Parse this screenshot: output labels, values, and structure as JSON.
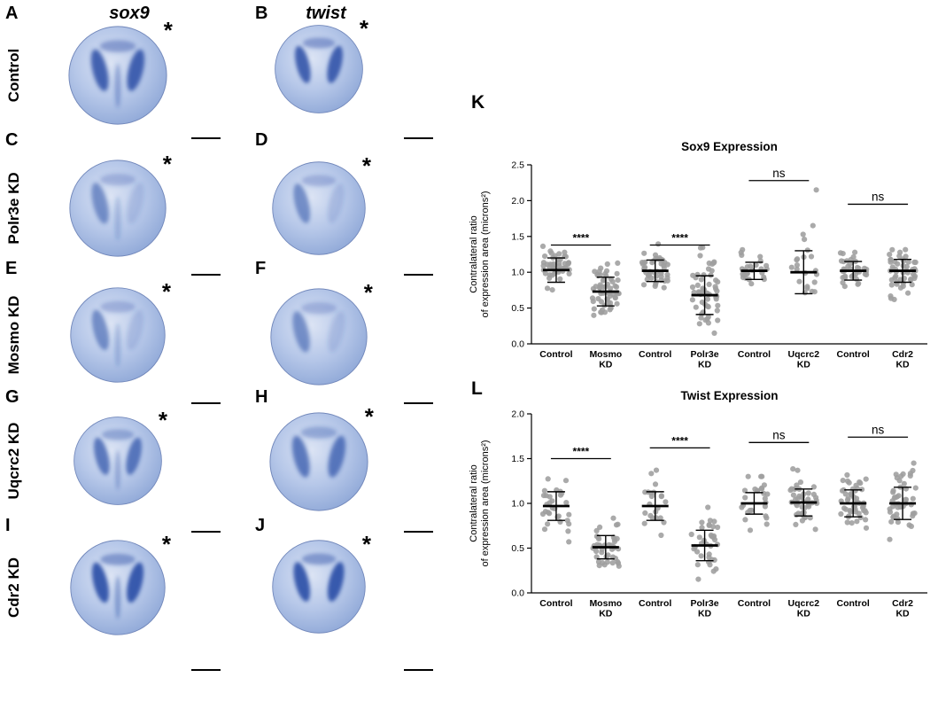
{
  "figure": {
    "gene_headers": [
      {
        "label": "sox9"
      },
      {
        "label": "twist"
      }
    ],
    "asterisk": "*",
    "rows": [
      {
        "label": "Control",
        "panel_left": "A",
        "panel_right": "B"
      },
      {
        "label": "Polr3e KD",
        "panel_left": "C",
        "panel_right": "D"
      },
      {
        "label": "Mosmo KD",
        "panel_left": "E",
        "panel_right": "F"
      },
      {
        "label": "Uqcrc2 KD",
        "panel_left": "G",
        "panel_right": "H"
      },
      {
        "label": "Cdr2 KD",
        "panel_left": "I",
        "panel_right": "J"
      }
    ]
  },
  "chart_data": [
    {
      "panel_letter": "K",
      "type": "scatter",
      "title": "Sox9 Expression",
      "ylabel_lines": [
        "Contralateral ratio",
        "of expression area (microns²)"
      ],
      "ylim": [
        0.0,
        2.5
      ],
      "yticks": [
        0.0,
        0.5,
        1.0,
        1.5,
        2.0,
        2.5
      ],
      "point_color": "#9e9e9e",
      "grid": false,
      "groups": [
        {
          "label_lines": [
            "Control"
          ],
          "mean": 1.03,
          "sd": 0.17,
          "n": 48
        },
        {
          "label_lines": [
            "Mosmo",
            "KD"
          ],
          "mean": 0.73,
          "sd": 0.2,
          "n": 58
        },
        {
          "label_lines": [
            "Control"
          ],
          "mean": 1.02,
          "sd": 0.15,
          "n": 45
        },
        {
          "label_lines": [
            "Polr3e",
            "KD"
          ],
          "mean": 0.68,
          "sd": 0.27,
          "n": 55
        },
        {
          "label_lines": [
            "Control"
          ],
          "mean": 1.02,
          "sd": 0.12,
          "n": 26
        },
        {
          "label_lines": [
            "Uqcrc2",
            "KD"
          ],
          "mean": 1.0,
          "sd": 0.3,
          "n": 21,
          "outliers": [
            2.15
          ]
        },
        {
          "label_lines": [
            "Control"
          ],
          "mean": 1.02,
          "sd": 0.13,
          "n": 38
        },
        {
          "label_lines": [
            "Cdr2",
            "KD"
          ],
          "mean": 1.02,
          "sd": 0.16,
          "n": 50
        }
      ],
      "annotations": [
        {
          "from": 0,
          "to": 1,
          "label": "****",
          "y": 1.38
        },
        {
          "from": 2,
          "to": 3,
          "label": "****",
          "y": 1.38
        },
        {
          "from": 4,
          "to": 5,
          "label": "ns",
          "y": 2.28
        },
        {
          "from": 6,
          "to": 7,
          "label": "ns",
          "y": 1.95
        }
      ]
    },
    {
      "panel_letter": "L",
      "type": "scatter",
      "title": "Twist Expression",
      "ylabel_lines": [
        "Contralateral ratio",
        "of expression area (microns²)"
      ],
      "ylim": [
        0.0,
        2.0
      ],
      "yticks": [
        0.0,
        0.5,
        1.0,
        1.5,
        2.0
      ],
      "point_color": "#9e9e9e",
      "grid": false,
      "groups": [
        {
          "label_lines": [
            "Control"
          ],
          "mean": 0.97,
          "sd": 0.16,
          "n": 30
        },
        {
          "label_lines": [
            "Mosmo",
            "KD"
          ],
          "mean": 0.51,
          "sd": 0.13,
          "n": 42
        },
        {
          "label_lines": [
            "Control"
          ],
          "mean": 0.97,
          "sd": 0.16,
          "n": 22
        },
        {
          "label_lines": [
            "Polr3e",
            "KD"
          ],
          "mean": 0.53,
          "sd": 0.17,
          "n": 36
        },
        {
          "label_lines": [
            "Control"
          ],
          "mean": 1.0,
          "sd": 0.12,
          "n": 26
        },
        {
          "label_lines": [
            "Uqcrc2",
            "KD"
          ],
          "mean": 1.01,
          "sd": 0.15,
          "n": 46
        },
        {
          "label_lines": [
            "Control"
          ],
          "mean": 1.0,
          "sd": 0.15,
          "n": 50
        },
        {
          "label_lines": [
            "Cdr2",
            "KD"
          ],
          "mean": 1.0,
          "sd": 0.18,
          "n": 46
        }
      ],
      "annotations": [
        {
          "from": 0,
          "to": 1,
          "label": "****",
          "y": 1.5
        },
        {
          "from": 2,
          "to": 3,
          "label": "****",
          "y": 1.62
        },
        {
          "from": 4,
          "to": 5,
          "label": "ns",
          "y": 1.68
        },
        {
          "from": 6,
          "to": 7,
          "label": "ns",
          "y": 1.74
        }
      ]
    }
  ]
}
